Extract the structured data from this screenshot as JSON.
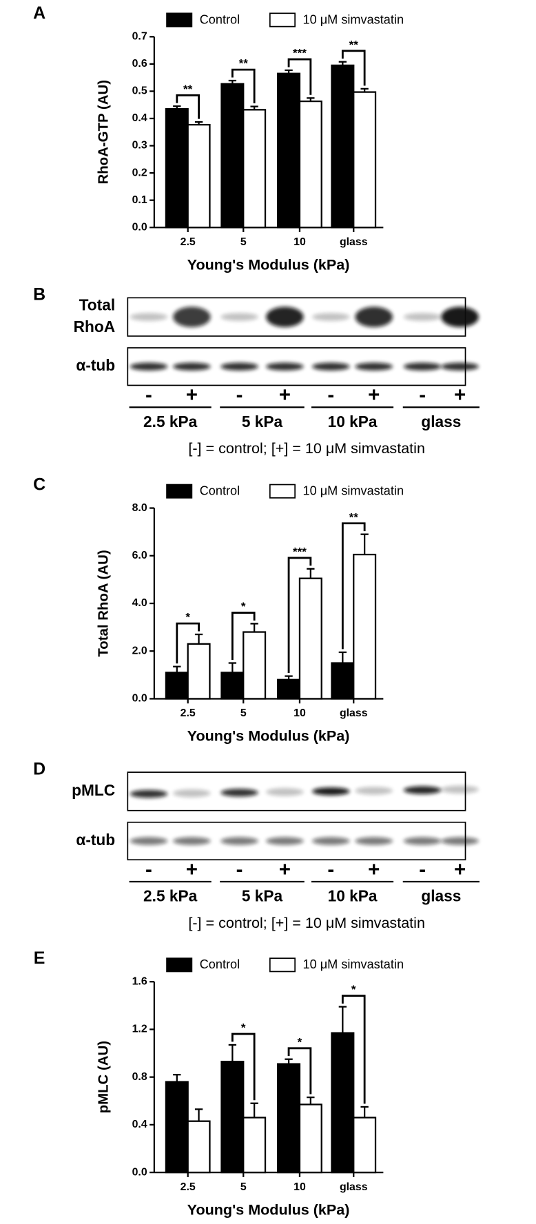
{
  "chart_data": [
    {
      "type": "bar",
      "panel": "A",
      "ylabel": "RhoA-GTP (AU)",
      "xlabel": "Young's Modulus (kPa)",
      "categories": [
        "2.5",
        "5",
        "10",
        "glass"
      ],
      "series": [
        {
          "name": "Control",
          "color": "#000000",
          "values": [
            0.435,
            0.527,
            0.565,
            0.595
          ],
          "errors": [
            0.01,
            0.012,
            0.012,
            0.013
          ]
        },
        {
          "name": "10 μM simvastatin",
          "color": "#ffffff",
          "values": [
            0.377,
            0.432,
            0.463,
            0.497
          ],
          "errors": [
            0.01,
            0.012,
            0.012,
            0.012
          ]
        }
      ],
      "edgecolor": "#000000",
      "ylim": [
        0,
        0.7
      ],
      "yticks": [
        {
          "value": 0,
          "label": "0.0"
        },
        0.1,
        0.2,
        0.3,
        0.4,
        0.5,
        0.6,
        0.7
      ],
      "annotations": [
        "**",
        "**",
        "***",
        "**"
      ]
    },
    {
      "type": "bar",
      "panel": "C",
      "ylabel": "Total RhoA (AU)",
      "xlabel": "Young's Modulus (kPa)",
      "categories": [
        "2.5",
        "5",
        "10",
        "glass"
      ],
      "series": [
        {
          "name": "Control",
          "color": "#000000",
          "values": [
            1.1,
            1.1,
            0.8,
            1.5
          ],
          "errors": [
            0.25,
            0.4,
            0.15,
            0.45
          ]
        },
        {
          "name": "10 μM simvastatin",
          "color": "#ffffff",
          "values": [
            2.3,
            2.8,
            5.05,
            6.05
          ],
          "errors": [
            0.4,
            0.35,
            0.4,
            0.85
          ]
        }
      ],
      "edgecolor": "#000000",
      "ylim": [
        0,
        8
      ],
      "yticks": [
        {
          "value": 0,
          "label": "0.0"
        },
        {
          "value": 2,
          "label": "2.0"
        },
        {
          "value": 4,
          "label": "4.0"
        },
        {
          "value": 6,
          "label": "6.0"
        },
        {
          "value": 8,
          "label": "8.0"
        }
      ],
      "annotations": [
        "*",
        "*",
        "***",
        "**"
      ]
    },
    {
      "type": "bar",
      "panel": "E",
      "ylabel": "pMLC (AU)",
      "xlabel": "Young's Modulus (kPa)",
      "categories": [
        "2.5",
        "5",
        "10",
        "glass"
      ],
      "series": [
        {
          "name": "Control",
          "color": "#000000",
          "values": [
            0.76,
            0.93,
            0.91,
            1.17
          ],
          "errors": [
            0.06,
            0.14,
            0.04,
            0.22
          ]
        },
        {
          "name": "10 μM simvastatin",
          "color": "#ffffff",
          "values": [
            0.43,
            0.46,
            0.57,
            0.46
          ],
          "errors": [
            0.1,
            0.12,
            0.06,
            0.09
          ]
        }
      ],
      "edgecolor": "#000000",
      "ylim": [
        0,
        1.6
      ],
      "yticks": [
        {
          "value": 0,
          "label": "0.0"
        },
        {
          "value": 0.4,
          "label": "0.4"
        },
        {
          "value": 0.8,
          "label": "0.8"
        },
        {
          "value": 1.2,
          "label": "1.2"
        },
        {
          "value": 1.6,
          "label": "1.6"
        }
      ],
      "annotations": [
        null,
        "*",
        "*",
        "*"
      ]
    }
  ],
  "blots": [
    {
      "panel": "B",
      "rows": [
        [
          "Total",
          "RhoA"
        ],
        [
          "α-tub"
        ]
      ],
      "lanes": [
        "-",
        "+",
        "-",
        "+",
        "-",
        "+",
        "-",
        "+"
      ],
      "groups": [
        "2.5 kPa",
        "5 kPa",
        "10 kPa",
        "glass"
      ],
      "caption": "[-] = control; [+] = 10 μM simvastatin"
    },
    {
      "panel": "D",
      "rows": [
        [
          "pMLC"
        ],
        [
          "α-tub"
        ]
      ],
      "lanes": [
        "-",
        "+",
        "-",
        "+",
        "-",
        "+",
        "-",
        "+"
      ],
      "groups": [
        "2.5 kPa",
        "5 kPa",
        "10 kPa",
        "glass"
      ],
      "caption": "[-] = control; [+] = 10 μM simvastatin"
    }
  ]
}
